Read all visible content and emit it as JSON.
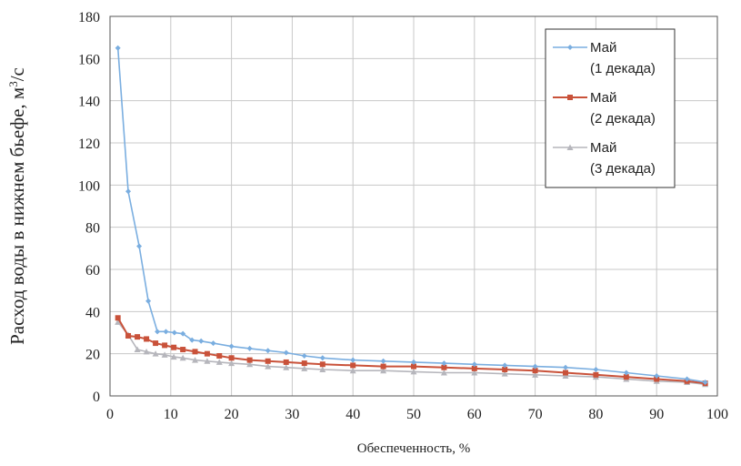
{
  "chart_data": {
    "type": "line",
    "xlabel": "Обеспеченность, %",
    "ylabel_main": "Расход воды в нижнем бьефе, м",
    "ylabel_sup": "3",
    "ylabel_end": "/с",
    "xlim": [
      0,
      100
    ],
    "ylim": [
      0,
      180
    ],
    "x_ticks": [
      0,
      10,
      20,
      30,
      40,
      50,
      60,
      70,
      80,
      90,
      100
    ],
    "y_ticks": [
      0,
      20,
      40,
      60,
      80,
      100,
      120,
      140,
      160,
      180
    ],
    "grid": true,
    "legend_position": "top-right",
    "series": [
      {
        "name": "Май (1 декада)",
        "label_line1": "Май",
        "label_line2": "(1 декада)",
        "color": "#7aaee0",
        "marker": "diamond",
        "x": [
          1.3,
          3,
          4.8,
          6.3,
          7.8,
          9.2,
          10.6,
          12,
          13.5,
          15,
          17,
          20,
          23,
          26,
          29,
          32,
          35,
          40,
          45,
          50,
          55,
          60,
          65,
          70,
          75,
          80,
          85,
          90,
          95,
          98
        ],
        "y": [
          165,
          97,
          71,
          45,
          30.5,
          30.5,
          30,
          29.5,
          26.5,
          26,
          25,
          23.5,
          22.5,
          21.5,
          20.5,
          19,
          18,
          17,
          16.5,
          16,
          15.5,
          15,
          14.5,
          14,
          13.5,
          12.5,
          11,
          9.5,
          8,
          6.5
        ]
      },
      {
        "name": "Май (2 декада)",
        "label_line1": "Май",
        "label_line2": "(2 декада)",
        "color": "#c9523a",
        "marker": "square",
        "x": [
          1.3,
          3,
          4.5,
          6,
          7.5,
          9,
          10.5,
          12,
          14,
          16,
          18,
          20,
          23,
          26,
          29,
          32,
          35,
          40,
          45,
          50,
          55,
          60,
          65,
          70,
          75,
          80,
          85,
          90,
          95,
          98
        ],
        "y": [
          37,
          28.5,
          28,
          27,
          25,
          24,
          23,
          22,
          21,
          20,
          19,
          18,
          17,
          16.5,
          16,
          15.5,
          15,
          14.5,
          14,
          14,
          13.5,
          13,
          12.5,
          12,
          11,
          10,
          9,
          8,
          7,
          6
        ]
      },
      {
        "name": "Май (3 декада)",
        "label_line1": "Май",
        "label_line2": "(3 декада)",
        "color": "#b6b6bc",
        "marker": "triangle",
        "x": [
          1.3,
          3,
          4.5,
          6,
          7.5,
          9,
          10.5,
          12,
          14,
          16,
          18,
          20,
          23,
          26,
          29,
          32,
          35,
          40,
          45,
          50,
          55,
          60,
          65,
          70,
          75,
          80,
          85,
          90,
          95,
          98
        ],
        "y": [
          35,
          29,
          22,
          21,
          20,
          19.5,
          18.5,
          18,
          17,
          16.5,
          16,
          15.5,
          15,
          14,
          13.5,
          13,
          12.5,
          12,
          12,
          11.5,
          11,
          11,
          10.5,
          10,
          9.5,
          9,
          8,
          7,
          6.5,
          5.5
        ]
      }
    ]
  }
}
